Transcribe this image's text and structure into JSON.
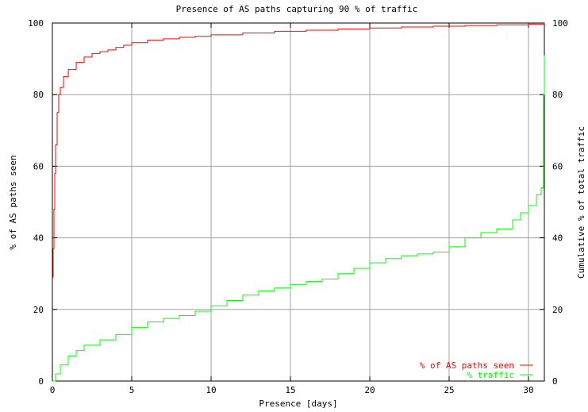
{
  "chart_data": {
    "type": "line",
    "title": "Presence of AS paths capturing 90 % of traffic",
    "xlabel": "Presence [days]",
    "ylabel": "% of AS paths seen",
    "y2label": "Cumulative % of total traffic",
    "xlim": [
      0,
      31
    ],
    "ylim": [
      0,
      100
    ],
    "y2lim": [
      0,
      100
    ],
    "x_ticks": [
      "0",
      "5",
      "10",
      "15",
      "20",
      "25",
      "30"
    ],
    "y_ticks": [
      "0",
      "20",
      "40",
      "60",
      "80",
      "100"
    ],
    "y2_ticks": [
      "0",
      "20",
      "40",
      "60",
      "80",
      "100"
    ],
    "grid": true,
    "legend_position": "bottom-right",
    "series": [
      {
        "name": "% of AS paths seen",
        "color": "#ff0000",
        "axis": "left",
        "x": [
          0,
          0.05,
          0.1,
          0.15,
          0.2,
          0.3,
          0.4,
          0.5,
          0.7,
          1,
          1.5,
          2,
          2.5,
          3,
          3.5,
          4,
          4.5,
          5,
          6,
          7,
          8,
          9,
          10,
          12,
          14,
          16,
          18,
          20,
          22,
          24,
          26,
          28,
          30,
          31
        ],
        "y": [
          29,
          37,
          48,
          58,
          66,
          75,
          80,
          82,
          85,
          87,
          89,
          90.5,
          91.5,
          92,
          92.5,
          93.2,
          93.8,
          94.5,
          95.2,
          95.6,
          96,
          96.3,
          96.7,
          97.2,
          97.7,
          98,
          98.3,
          98.6,
          98.9,
          99.1,
          99.3,
          99.5,
          99.7,
          100
        ]
      },
      {
        "name": "% traffic",
        "color": "#00ff00",
        "axis": "right",
        "x": [
          0,
          0.2,
          0.5,
          1,
          1.5,
          2,
          3,
          4,
          5,
          6,
          7,
          8,
          9,
          10,
          11,
          12,
          13,
          14,
          15,
          16,
          17,
          18,
          19,
          20,
          21,
          22,
          23,
          24,
          25,
          26,
          27,
          28,
          29,
          29.5,
          30,
          30.5,
          30.8,
          30.95,
          31
        ],
        "y": [
          0,
          2,
          4.5,
          7,
          8.5,
          10,
          11.5,
          13,
          15,
          16.5,
          17.5,
          18.3,
          19.5,
          21,
          22.5,
          24,
          25.2,
          26,
          27,
          27.8,
          28.5,
          30,
          31.5,
          33,
          34.2,
          35,
          35.5,
          36,
          37.5,
          40,
          41.5,
          42.5,
          45,
          47,
          49,
          52,
          54,
          80,
          91
        ]
      }
    ]
  }
}
